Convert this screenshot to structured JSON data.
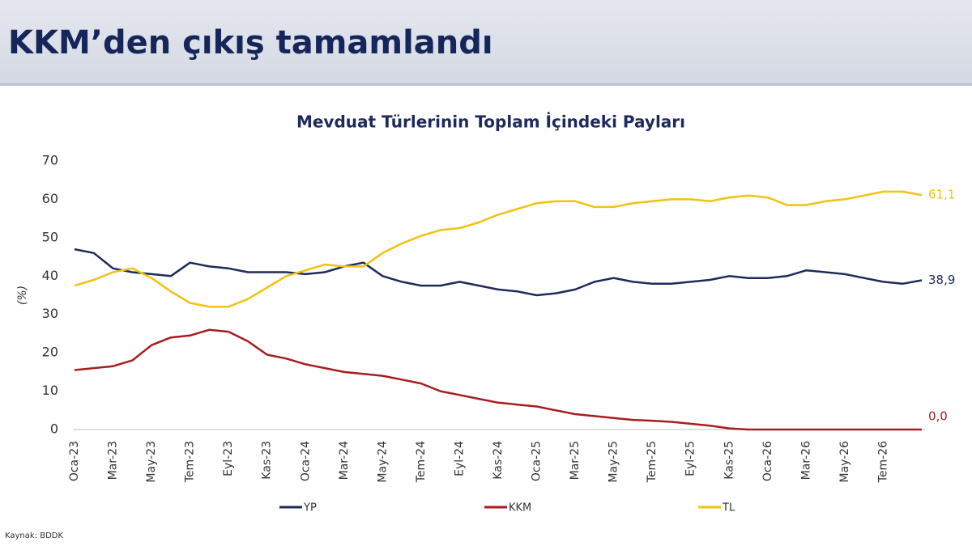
{
  "header": {
    "title": "KKM’den çıkış tamamlandı"
  },
  "chart_data": {
    "type": "line",
    "title": "Mevduat Türlerinin Toplam İçindeki Payları",
    "y_label": "(%)",
    "categories": [
      "Oca-23",
      null,
      "Mar-23",
      null,
      "May-23",
      null,
      "Tem-23",
      null,
      "Eyl-23",
      null,
      "Kas-23",
      null,
      "Oca-24",
      null,
      "Mar-24",
      null,
      "May-24",
      null,
      "Tem-24",
      null,
      "Eyl-24",
      null,
      "Kas-24",
      null,
      "Oca-25",
      null,
      "Mar-25",
      null,
      "May-25",
      null,
      "Tem-25",
      null,
      "Eyl-25",
      null,
      "Kas-25",
      null,
      "Oca-26",
      null,
      "Mar-26",
      null,
      "May-26",
      null,
      "Tem-26",
      null,
      null
    ],
    "series": [
      {
        "name": "YP",
        "color": "#1c2b5c",
        "end_label": "38,9",
        "values": [
          47,
          46,
          42,
          41,
          40.5,
          40,
          43.5,
          42.5,
          42,
          41,
          41,
          41,
          40.5,
          41,
          42.5,
          43.5,
          40,
          38.5,
          37.5,
          37.5,
          38.5,
          37.5,
          36.5,
          36,
          35,
          35.5,
          36.5,
          38.5,
          39.5,
          38.5,
          38,
          38,
          38.5,
          39,
          40,
          39.5,
          39.5,
          40,
          41.5,
          41,
          40.5,
          39.5,
          38.5,
          38,
          38.9
        ]
      },
      {
        "name": "KKM",
        "color": "#a81d1d",
        "end_label": "0,0",
        "values": [
          15.5,
          16,
          16.5,
          18,
          22,
          24,
          24.5,
          26,
          25.5,
          23,
          19.5,
          18.5,
          17,
          16,
          15,
          14.5,
          14,
          13,
          12,
          10,
          9,
          8,
          7,
          6.5,
          6,
          5,
          4,
          3.5,
          3,
          2.5,
          2.3,
          2,
          1.5,
          1,
          0.3,
          0,
          0,
          0,
          0,
          0,
          0,
          0,
          0,
          0,
          0.0
        ]
      },
      {
        "name": "TL",
        "color": "#f2c20f",
        "end_label": "61,1",
        "values": [
          37.5,
          39,
          41,
          42,
          39.5,
          36,
          33,
          32,
          32,
          34,
          37,
          40,
          41.5,
          43,
          42.5,
          42.5,
          46,
          48.5,
          50.5,
          52,
          52.5,
          54,
          56,
          57.5,
          59,
          59.5,
          59.5,
          58,
          58,
          59,
          59.5,
          60,
          60,
          59.5,
          60.5,
          61,
          60.5,
          58.5,
          58.5,
          59.5,
          60,
          61,
          62,
          62,
          61.1
        ]
      }
    ],
    "ylim": [
      0,
      70
    ],
    "yticks": [
      0,
      10,
      20,
      30,
      40,
      50,
      60,
      70
    ],
    "grid": false,
    "legend": "bottom",
    "source": "Kaynak: BDDK"
  }
}
